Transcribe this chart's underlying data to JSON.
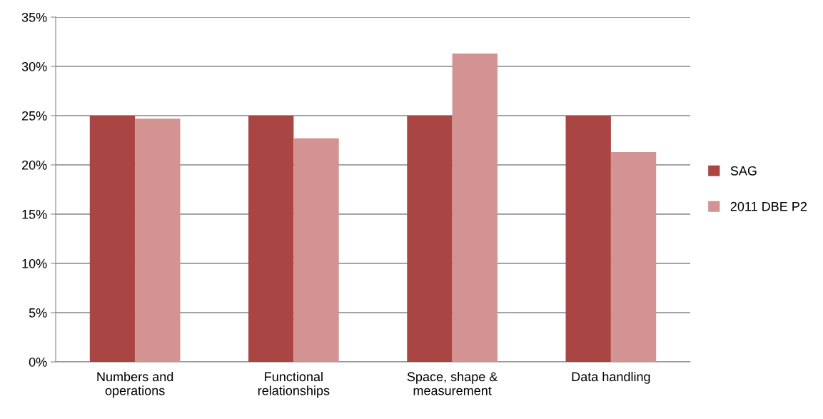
{
  "chart_data": {
    "type": "bar",
    "categories": [
      "Numbers and\noperations",
      "Functional\nrelationships",
      "Space, shape &\nmeasurement",
      "Data handling"
    ],
    "series": [
      {
        "name": "SAG",
        "color": "#a94543",
        "values": [
          25,
          25,
          25,
          25
        ]
      },
      {
        "name": "2011 DBE P2",
        "color": "#d39392",
        "values": [
          24.7,
          22.7,
          31.3,
          21.3
        ]
      }
    ],
    "ylim": [
      0,
      35
    ],
    "yticks": [
      {
        "value": 0,
        "label": "0%"
      },
      {
        "value": 5,
        "label": "5%"
      },
      {
        "value": 10,
        "label": "10%"
      },
      {
        "value": 15,
        "label": "15%"
      },
      {
        "value": 20,
        "label": "20%"
      },
      {
        "value": 25,
        "label": "25%"
      },
      {
        "value": 30,
        "label": "30%"
      },
      {
        "value": 35,
        "label": "35%"
      }
    ],
    "grid": "y",
    "legend": "right"
  }
}
